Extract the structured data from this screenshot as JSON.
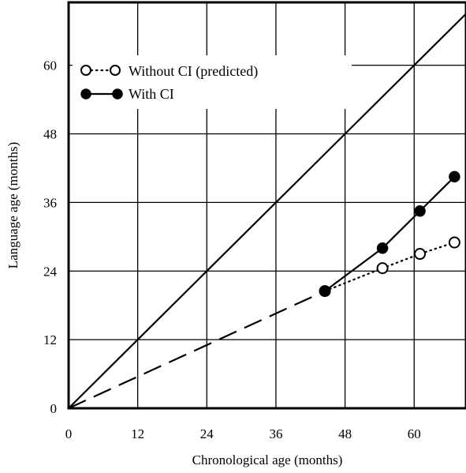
{
  "chart_data": {
    "type": "line",
    "xlabel": "Chronological age (months)",
    "ylabel": "Language age (months)",
    "xlim": [
      0,
      69
    ],
    "ylim": [
      0,
      71
    ],
    "xticks": [
      0,
      12,
      24,
      36,
      48,
      60
    ],
    "yticks": [
      0,
      12,
      24,
      36,
      48,
      60
    ],
    "grid": true,
    "legend_position": "top-left",
    "reference_line": {
      "x": [
        0,
        69
      ],
      "y": [
        0,
        69
      ],
      "style": "solid"
    },
    "baseline_extrapolation": {
      "x": [
        0,
        44.5
      ],
      "y": [
        0,
        20.5
      ],
      "style": "dashed"
    },
    "series": [
      {
        "name": "Without CI (predicted)",
        "style": "dotted",
        "marker": "open-circle",
        "x": [
          44.5,
          54.5,
          61,
          67
        ],
        "y": [
          20.5,
          24.5,
          27,
          29
        ]
      },
      {
        "name": "With CI",
        "style": "solid",
        "marker": "filled-circle",
        "x": [
          44.5,
          54.5,
          61,
          67
        ],
        "y": [
          20.5,
          28,
          34.5,
          40.5
        ]
      }
    ],
    "colors": {
      "line": "#000000",
      "grid": "#000000",
      "background": "#ffffff"
    }
  }
}
